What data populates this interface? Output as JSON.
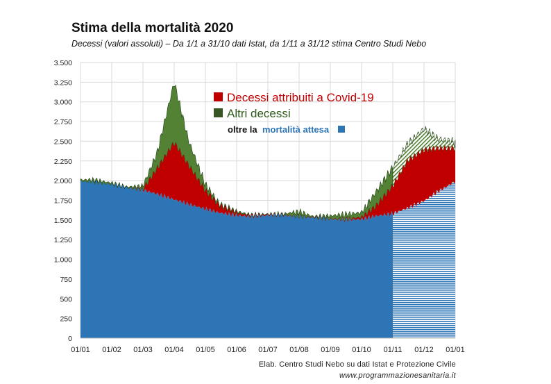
{
  "title": "Stima della mortalità 2020",
  "subtitle": "Decessi (valori assoluti) – Da 1/1 a 31/10 dati Istat, da 1/11 a 31/12 stima Centro Studi Nebo",
  "source_line1": "Elab. Centro Studi Nebo su dati Istat e Protezione Civile",
  "source_line2": "www.programmazionesanitaria.it",
  "colors": {
    "covid": "#c00000",
    "other": "#548235",
    "expected": "#2e75b6",
    "grid": "#d9d9d9"
  },
  "chart_data": {
    "type": "area",
    "title": "Stima della mortalità 2020",
    "xlabel": "",
    "ylabel": "",
    "ylim": [
      0,
      3500
    ],
    "yticks": [
      0,
      250,
      500,
      750,
      1000,
      1250,
      1500,
      1750,
      2000,
      2250,
      2500,
      2750,
      3000,
      3250,
      3500
    ],
    "ytick_labels": [
      "0",
      "250",
      "500",
      "750",
      "1.000",
      "1.250",
      "1.500",
      "1.750",
      "2.000",
      "2.250",
      "2.500",
      "2.750",
      "3.000",
      "3.250",
      "3.500"
    ],
    "xtick_labels": [
      "01/01",
      "01/02",
      "01/03",
      "01/04",
      "01/05",
      "01/06",
      "01/07",
      "01/08",
      "01/09",
      "01/10",
      "01/11",
      "01/12",
      "01/01"
    ],
    "grid": true,
    "legend_position": "top-center",
    "legend": {
      "covid": "Decessi attribuiti a Covid-19",
      "other": "Altri decessi",
      "expected_prefix": "oltre la",
      "expected_word": "mortalità attesa"
    },
    "estimate_from": "01/11",
    "x": [
      "01/01",
      "15/01",
      "01/02",
      "15/02",
      "01/03",
      "15/03",
      "01/04",
      "15/04",
      "01/05",
      "15/05",
      "01/06",
      "15/06",
      "01/07",
      "15/07",
      "01/08",
      "15/08",
      "01/09",
      "15/09",
      "01/10",
      "15/10",
      "01/11",
      "15/11",
      "01/12",
      "15/12",
      "31/12"
    ],
    "series": [
      {
        "name": "mortalità attesa",
        "values": [
          1990,
          1980,
          1950,
          1910,
          1880,
          1830,
          1760,
          1700,
          1640,
          1590,
          1560,
          1540,
          1560,
          1560,
          1540,
          1530,
          1510,
          1500,
          1510,
          1550,
          1580,
          1650,
          1740,
          1860,
          1990
        ]
      },
      {
        "name": "Decessi attribuiti a Covid-19",
        "values": [
          0,
          0,
          0,
          0,
          10,
          320,
          720,
          490,
          230,
          90,
          30,
          15,
          10,
          5,
          5,
          5,
          5,
          10,
          25,
          120,
          350,
          600,
          650,
          550,
          420
        ]
      },
      {
        "name": "Altri decessi",
        "values": [
          20,
          30,
          20,
          10,
          40,
          200,
          770,
          310,
          80,
          20,
          20,
          10,
          5,
          10,
          60,
          10,
          40,
          60,
          60,
          180,
          240,
          210,
          270,
          120,
          80
        ]
      }
    ]
  }
}
